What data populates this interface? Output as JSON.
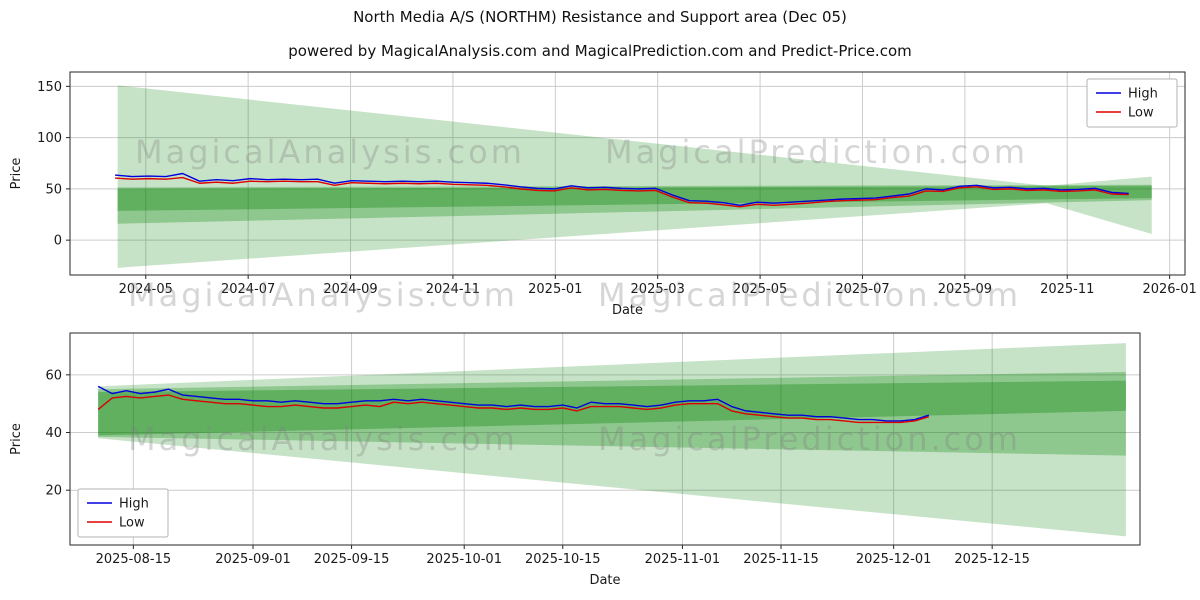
{
  "header": {
    "title": "North Media A/S (NORTHM) Resistance and Support area (Dec 05)",
    "subtitle": "powered by MagicalAnalysis.com and MagicalPrediction.com and Predict-Price.com"
  },
  "watermarks": {
    "analysis": "MagicalAnalysis.com",
    "prediction": "MagicalPrediction.com"
  },
  "colors": {
    "high": "#0000dd",
    "low": "#dd0000",
    "band": "#008000",
    "grid": "#cccccc",
    "axis": "#262626"
  },
  "chart_data": [
    {
      "type": "line",
      "title": "",
      "xlabel": "Date",
      "ylabel": "Price",
      "xlim": [
        -0.48,
        21.3
      ],
      "ylim": [
        -34,
        164
      ],
      "grid": true,
      "yticks": [
        0,
        50,
        100,
        150
      ],
      "xticks": [
        {
          "v": 1,
          "label": "2024-05"
        },
        {
          "v": 3,
          "label": "2024-07"
        },
        {
          "v": 5,
          "label": "2024-09"
        },
        {
          "v": 7,
          "label": "2024-11"
        },
        {
          "v": 9,
          "label": "2025-01"
        },
        {
          "v": 11,
          "label": "2025-03"
        },
        {
          "v": 13,
          "label": "2025-05"
        },
        {
          "v": 15,
          "label": "2025-07"
        },
        {
          "v": 17,
          "label": "2025-09"
        },
        {
          "v": 19,
          "label": "2025-11"
        },
        {
          "v": 21,
          "label": "2026-01"
        }
      ],
      "legend": {
        "position": "top-right",
        "items": [
          {
            "label": "High",
            "color": "#0000dd"
          },
          {
            "label": "Low",
            "color": "#dd0000"
          }
        ]
      },
      "bands": [
        {
          "alpha": 0.22,
          "upper": [
            [
              0.45,
              151
            ],
            [
              18.6,
              53
            ],
            [
              20.65,
              62
            ]
          ],
          "lower": [
            [
              0.45,
              -27
            ],
            [
              18.6,
              36
            ],
            [
              20.65,
              6
            ]
          ]
        },
        {
          "alpha": 0.28,
          "upper": [
            [
              0.45,
              51.5
            ],
            [
              20.65,
              54
            ]
          ],
          "lower": [
            [
              0.45,
              16
            ],
            [
              20.65,
              39
            ]
          ]
        },
        {
          "alpha": 0.33,
          "upper": [
            [
              0.45,
              50
            ],
            [
              20.65,
              53
            ]
          ],
          "lower": [
            [
              0.45,
              28.5
            ],
            [
              20.65,
              41
            ]
          ]
        }
      ],
      "series": [
        {
          "name": "High",
          "color": "#0000dd",
          "x_start": 0.4,
          "x_step": 0.33,
          "values": [
            63.5,
            62,
            62.5,
            62,
            65,
            57.5,
            59,
            58,
            60,
            59,
            59.5,
            59,
            59.5,
            55.5,
            58,
            57.5,
            57,
            57.5,
            57,
            57.5,
            56.5,
            56,
            55.5,
            54,
            52,
            50.5,
            50,
            53,
            51,
            51.5,
            50.5,
            50,
            50.5,
            44,
            38.5,
            38,
            36.5,
            34,
            37,
            36,
            37,
            38,
            39,
            40,
            40.5,
            41,
            43,
            45,
            50,
            49,
            52.5,
            53.5,
            51,
            51.5,
            50,
            50.5,
            49,
            49.5,
            50.5,
            46.5,
            45.5
          ]
        },
        {
          "name": "Low",
          "color": "#dd0000",
          "x_start": 0.4,
          "x_step": 0.33,
          "values": [
            60.5,
            59.5,
            60,
            59.5,
            61,
            55.5,
            56.5,
            55.5,
            57.5,
            57,
            57.5,
            57,
            57,
            53.5,
            56,
            55.5,
            55,
            55.5,
            55,
            55.5,
            54.5,
            54,
            53.5,
            52,
            50,
            48.5,
            48,
            51,
            49,
            49.5,
            48.5,
            48,
            48.5,
            42,
            36.5,
            36,
            34.5,
            32.5,
            35,
            34,
            35,
            36,
            37.5,
            38.5,
            39,
            39.5,
            41.5,
            43,
            48,
            47.5,
            51,
            52,
            49.5,
            50,
            48.5,
            49,
            47.5,
            48,
            49,
            45,
            44.5
          ]
        }
      ]
    },
    {
      "type": "line",
      "title": "",
      "xlabel": "Date",
      "ylabel": "Price",
      "xlim": [
        -4,
        148
      ],
      "ylim": [
        1,
        74.5
      ],
      "grid": true,
      "yticks": [
        20,
        40,
        60
      ],
      "xticks": [
        {
          "v": 5,
          "label": "2025-08-15"
        },
        {
          "v": 22,
          "label": "2025-09-01"
        },
        {
          "v": 36,
          "label": "2025-09-15"
        },
        {
          "v": 52,
          "label": "2025-10-01"
        },
        {
          "v": 66,
          "label": "2025-10-15"
        },
        {
          "v": 83,
          "label": "2025-11-01"
        },
        {
          "v": 97,
          "label": "2025-11-15"
        },
        {
          "v": 113,
          "label": "2025-12-01"
        },
        {
          "v": 127,
          "label": "2025-12-15"
        }
      ],
      "legend": {
        "position": "bottom-left",
        "items": [
          {
            "label": "High",
            "color": "#0000dd"
          },
          {
            "label": "Low",
            "color": "#dd0000"
          }
        ]
      },
      "bands": [
        {
          "alpha": 0.22,
          "upper": [
            [
              0,
              56
            ],
            [
              146,
              71
            ]
          ],
          "lower": [
            [
              0,
              38
            ],
            [
              146,
              4
            ]
          ]
        },
        {
          "alpha": 0.28,
          "upper": [
            [
              0,
              55
            ],
            [
              146,
              61
            ]
          ],
          "lower": [
            [
              0,
              38.5
            ],
            [
              146,
              32
            ]
          ]
        },
        {
          "alpha": 0.33,
          "upper": [
            [
              0,
              54
            ],
            [
              146,
              58
            ]
          ],
          "lower": [
            [
              0,
              39
            ],
            [
              146,
              47.5
            ]
          ]
        }
      ],
      "series": [
        {
          "name": "High",
          "color": "#0000dd",
          "x_start": 0,
          "x_step": 2,
          "values": [
            56,
            53.5,
            54.5,
            53.5,
            54,
            55,
            53,
            52.5,
            52,
            51.5,
            51.5,
            51,
            51,
            50.5,
            51,
            50.5,
            50,
            50,
            50.5,
            51,
            51,
            51.5,
            51,
            51.5,
            51,
            50.5,
            50,
            49.5,
            49.5,
            49,
            49.5,
            49,
            49,
            49.5,
            48.5,
            50.5,
            50,
            50,
            49.5,
            49,
            49.5,
            50.5,
            51,
            51,
            51.5,
            49,
            47.5,
            47,
            46.5,
            46,
            46,
            45.5,
            45.5,
            45,
            44.5,
            44.5,
            44,
            44,
            44.5,
            46
          ]
        },
        {
          "name": "Low",
          "color": "#dd0000",
          "x_start": 0,
          "x_step": 2,
          "values": [
            48,
            52,
            52.5,
            52,
            52.5,
            53,
            51.5,
            51,
            50.5,
            50,
            50,
            49.5,
            49,
            49,
            49.5,
            49,
            48.5,
            48.5,
            49,
            49.5,
            49,
            50.5,
            50,
            50.5,
            50,
            49.5,
            49,
            48.5,
            48.5,
            48,
            48.5,
            48,
            48,
            48.5,
            47.5,
            49,
            49,
            49,
            48.5,
            48,
            48.5,
            49.5,
            50,
            50,
            50,
            47.5,
            46.5,
            46,
            45.5,
            45,
            45,
            44.5,
            44.5,
            44,
            43.5,
            43.5,
            43.5,
            43.5,
            44,
            45.5
          ]
        }
      ]
    }
  ]
}
